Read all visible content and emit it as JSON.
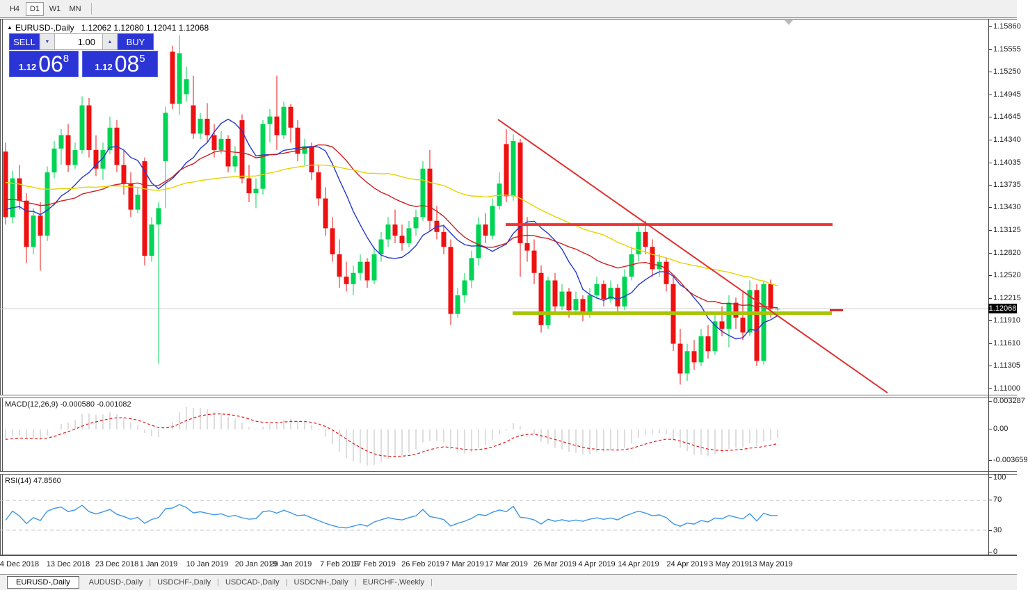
{
  "toolbar": {
    "timeframes": [
      {
        "label": "H4",
        "active": false
      },
      {
        "label": "D1",
        "active": true
      },
      {
        "label": "W1",
        "active": false
      },
      {
        "label": "MN",
        "active": false
      }
    ]
  },
  "chart": {
    "collapse_icon": "▲",
    "symbol": "EURUSD-,Daily",
    "quote": "1.12062 1.12080 1.12041 1.12068"
  },
  "trade_panel": {
    "sell_label": "SELL",
    "buy_label": "BUY",
    "volume": "1.00",
    "icons": {
      "up": "▲",
      "down": "▼"
    },
    "sell_price": {
      "small": "1.12",
      "big": "06",
      "sup": "8"
    },
    "buy_price": {
      "small": "1.12",
      "big": "08",
      "sup": "5"
    }
  },
  "macd_panel": {
    "name": "MACD(12,26,9)",
    "value": "-0.000580",
    "signal": "-0.001082"
  },
  "rsi_panel": {
    "name": "RSI(14)",
    "value": "47.8560"
  },
  "price_axis": {
    "current": "1.12068"
  },
  "bottom_tabs": [
    {
      "label": "EURUSD-,Daily",
      "active": true
    },
    {
      "label": "AUDUSD-,Daily",
      "active": false
    },
    {
      "label": "USDCHF-,Daily",
      "active": false
    },
    {
      "label": "USDCAD-,Daily",
      "active": false
    },
    {
      "label": "USDCNH-,Daily",
      "active": false
    },
    {
      "label": "EURCHF-,Weekly",
      "active": false
    }
  ],
  "chart_data": {
    "type": "candlestick",
    "symbol": "EURUSD-",
    "timeframe": "Daily",
    "ylim": [
      1.10915,
      1.15953
    ],
    "layout": {
      "first_x": 8,
      "spacing": 10,
      "body_width": 7
    },
    "colors": {
      "up": "#00d455",
      "down": "#ee1111",
      "current_price_line": "#c9c9c9",
      "macd_hist": "#bdbdbd",
      "macd_signal": "#e01818",
      "rsi_line": "#3e97e8",
      "levels_dash": "#c0c0c0",
      "panel_blue": "#2b35d5",
      "support_olive": "#a8c400",
      "resistance_red": "#f03434"
    },
    "indicators": {
      "moving_averages": [
        {
          "period": 10,
          "color": "#2238cc"
        },
        {
          "period": 25,
          "color": "#cc2020"
        },
        {
          "period": 50,
          "color": "#e8d200"
        }
      ],
      "macd": {
        "fast": 12,
        "slow": 26,
        "signal": 9
      },
      "rsi": {
        "period": 14,
        "levels": [
          70,
          30
        ]
      }
    },
    "overlays": {
      "hlines": [
        {
          "price": 1.132,
          "x1": 727,
          "x2": 1197,
          "color": "#f03434",
          "width": 4
        },
        {
          "price": 1.1201,
          "x1": 737,
          "x2": 1196,
          "color": "#a8c400",
          "width": 5
        }
      ],
      "trendline": {
        "x1": 716,
        "price1": 1.1461,
        "x2": 1276,
        "price2": 1.1094,
        "color": "#e03030",
        "width": 2
      },
      "price_marker": {
        "x1": 1193,
        "x2": 1212,
        "price": 1.1205,
        "color": "#e02020",
        "width": 3
      },
      "current_price": 1.12068
    },
    "y_ticks": [
      "1.15860",
      "1.15555",
      "1.15250",
      "1.14945",
      "1.14645",
      "1.14340",
      "1.14035",
      "1.13735",
      "1.13430",
      "1.13125",
      "1.12820",
      "1.12520",
      "1.12215",
      "1.11910",
      "1.11610",
      "1.11305",
      "1.11000"
    ],
    "macd_ticks": [
      "0.003287",
      "0.00",
      "-0.003659"
    ],
    "rsi_ticks": [
      "100",
      "70",
      "30",
      "0"
    ],
    "date_ticks": [
      {
        "label": "4 Dec 2018",
        "i": 2
      },
      {
        "label": "13 Dec 2018",
        "i": 9
      },
      {
        "label": "23 Dec 2018",
        "i": 16
      },
      {
        "label": "1 Jan 2019",
        "i": 22
      },
      {
        "label": "10 Jan 2019",
        "i": 29
      },
      {
        "label": "20 Jan 2019",
        "i": 36
      },
      {
        "label": "29 Jan 2019",
        "i": 41
      },
      {
        "label": "7 Feb 2019",
        "i": 48
      },
      {
        "label": "17 Feb 2019",
        "i": 53
      },
      {
        "label": "26 Feb 2019",
        "i": 60
      },
      {
        "label": "7 Mar 2019",
        "i": 66
      },
      {
        "label": "17 Mar 2019",
        "i": 72
      },
      {
        "label": "26 Mar 2019",
        "i": 79
      },
      {
        "label": "4 Apr 2019",
        "i": 85
      },
      {
        "label": "14 Apr 2019",
        "i": 91
      },
      {
        "label": "24 Apr 2019",
        "i": 98
      },
      {
        "label": "3 May 2019",
        "i": 104
      },
      {
        "label": "13 May 2019",
        "i": 110
      }
    ],
    "ohlc": [
      [
        1.1418,
        1.143,
        1.132,
        1.133
      ],
      [
        1.133,
        1.1392,
        1.1322,
        1.1382
      ],
      [
        1.1382,
        1.14,
        1.134,
        1.1352
      ],
      [
        1.1352,
        1.1362,
        1.1268,
        1.129
      ],
      [
        1.129,
        1.1342,
        1.128,
        1.1332
      ],
      [
        1.1332,
        1.135,
        1.1258,
        1.1305
      ],
      [
        1.1305,
        1.1398,
        1.1298,
        1.139
      ],
      [
        1.139,
        1.1432,
        1.1382,
        1.1422
      ],
      [
        1.1422,
        1.1448,
        1.14,
        1.144
      ],
      [
        1.144,
        1.1455,
        1.139,
        1.14
      ],
      [
        1.14,
        1.143,
        1.1395,
        1.142
      ],
      [
        1.142,
        1.1492,
        1.1415,
        1.148
      ],
      [
        1.148,
        1.149,
        1.141,
        1.142
      ],
      [
        1.142,
        1.144,
        1.1385,
        1.1395
      ],
      [
        1.1395,
        1.143,
        1.138,
        1.142
      ],
      [
        1.142,
        1.1465,
        1.1415,
        1.145
      ],
      [
        1.145,
        1.146,
        1.139,
        1.14
      ],
      [
        1.14,
        1.142,
        1.136,
        1.1375
      ],
      [
        1.1375,
        1.139,
        1.133,
        1.134
      ],
      [
        1.134,
        1.137,
        1.1335,
        1.136
      ],
      [
        1.1405,
        1.141,
        1.1265,
        1.1278
      ],
      [
        1.1278,
        1.133,
        1.127,
        1.132
      ],
      [
        1.132,
        1.135,
        1.1133,
        1.1342
      ],
      [
        1.1405,
        1.1478,
        1.1342,
        1.147
      ],
      [
        1.1552,
        1.156,
        1.1475,
        1.1482
      ],
      [
        1.1482,
        1.1574,
        1.1467,
        1.155
      ],
      [
        1.1495,
        1.1532,
        1.1485,
        1.1515
      ],
      [
        1.148,
        1.152,
        1.1435,
        1.1442
      ],
      [
        1.1442,
        1.147,
        1.1435,
        1.1462
      ],
      [
        1.1462,
        1.1483,
        1.143,
        1.144
      ],
      [
        1.144,
        1.1455,
        1.141,
        1.142
      ],
      [
        1.142,
        1.1445,
        1.1415,
        1.1435
      ],
      [
        1.1435,
        1.144,
        1.139,
        1.1398
      ],
      [
        1.1398,
        1.1425,
        1.139,
        1.1412
      ],
      [
        1.146,
        1.1468,
        1.1375,
        1.1382
      ],
      [
        1.1382,
        1.14,
        1.135,
        1.1362
      ],
      [
        1.1362,
        1.1382,
        1.1342,
        1.1368
      ],
      [
        1.1368,
        1.146,
        1.136,
        1.1455
      ],
      [
        1.1455,
        1.1475,
        1.143,
        1.1465
      ],
      [
        1.1465,
        1.152,
        1.142,
        1.144
      ],
      [
        1.144,
        1.1485,
        1.1435,
        1.1478
      ],
      [
        1.1478,
        1.1482,
        1.143,
        1.145
      ],
      [
        1.145,
        1.146,
        1.1405,
        1.1415
      ],
      [
        1.1415,
        1.1435,
        1.14,
        1.1425
      ],
      [
        1.1425,
        1.143,
        1.138,
        1.139
      ],
      [
        1.139,
        1.14,
        1.1345,
        1.1355
      ],
      [
        1.1355,
        1.137,
        1.1305,
        1.1315
      ],
      [
        1.1315,
        1.133,
        1.127,
        1.128
      ],
      [
        1.128,
        1.13,
        1.1235,
        1.125
      ],
      [
        1.125,
        1.127,
        1.123,
        1.124
      ],
      [
        1.124,
        1.1265,
        1.1225,
        1.1255
      ],
      [
        1.1255,
        1.128,
        1.1245,
        1.127
      ],
      [
        1.127,
        1.1275,
        1.1235,
        1.1245
      ],
      [
        1.1245,
        1.129,
        1.124,
        1.128
      ],
      [
        1.128,
        1.131,
        1.127,
        1.13
      ],
      [
        1.13,
        1.133,
        1.129,
        1.132
      ],
      [
        1.132,
        1.134,
        1.1295,
        1.1305
      ],
      [
        1.1305,
        1.132,
        1.1285,
        1.1295
      ],
      [
        1.1295,
        1.1325,
        1.129,
        1.1315
      ],
      [
        1.1315,
        1.134,
        1.1305,
        1.133
      ],
      [
        1.133,
        1.1405,
        1.1325,
        1.1395
      ],
      [
        1.1395,
        1.142,
        1.131,
        1.1325
      ],
      [
        1.1325,
        1.1345,
        1.13,
        1.131
      ],
      [
        1.131,
        1.132,
        1.128,
        1.129
      ],
      [
        1.129,
        1.13,
        1.1185,
        1.12
      ],
      [
        1.12,
        1.1235,
        1.1195,
        1.1225
      ],
      [
        1.1225,
        1.1255,
        1.1215,
        1.1245
      ],
      [
        1.1245,
        1.1285,
        1.1235,
        1.1275
      ],
      [
        1.1275,
        1.133,
        1.1265,
        1.132
      ],
      [
        1.132,
        1.1335,
        1.1295,
        1.1305
      ],
      [
        1.1305,
        1.1355,
        1.13,
        1.1345
      ],
      [
        1.1345,
        1.139,
        1.134,
        1.1375
      ],
      [
        1.1428,
        1.1448,
        1.135,
        1.1358
      ],
      [
        1.1358,
        1.1441,
        1.1352,
        1.1432
      ],
      [
        1.143,
        1.1435,
        1.125,
        1.1295
      ],
      [
        1.1295,
        1.133,
        1.127,
        1.1285
      ],
      [
        1.1285,
        1.13,
        1.124,
        1.1255
      ],
      [
        1.1255,
        1.1265,
        1.1175,
        1.1185
      ],
      [
        1.1185,
        1.125,
        1.118,
        1.1245
      ],
      [
        1.1245,
        1.1255,
        1.12,
        1.121
      ],
      [
        1.121,
        1.124,
        1.1205,
        1.123
      ],
      [
        1.123,
        1.1235,
        1.1195,
        1.1205
      ],
      [
        1.1205,
        1.123,
        1.12,
        1.122
      ],
      [
        1.122,
        1.1225,
        1.119,
        1.12
      ],
      [
        1.12,
        1.1235,
        1.1195,
        1.1225
      ],
      [
        1.1225,
        1.125,
        1.122,
        1.124
      ],
      [
        1.124,
        1.1245,
        1.121,
        1.122
      ],
      [
        1.122,
        1.1245,
        1.1215,
        1.1235
      ],
      [
        1.1235,
        1.124,
        1.12,
        1.121
      ],
      [
        1.121,
        1.126,
        1.1205,
        1.125
      ],
      [
        1.125,
        1.129,
        1.1245,
        1.128
      ],
      [
        1.128,
        1.132,
        1.127,
        1.131
      ],
      [
        1.131,
        1.1325,
        1.128,
        1.129
      ],
      [
        1.129,
        1.13,
        1.125,
        1.126
      ],
      [
        1.126,
        1.128,
        1.125,
        1.127
      ],
      [
        1.127,
        1.1275,
        1.123,
        1.124
      ],
      [
        1.124,
        1.125,
        1.115,
        1.116
      ],
      [
        1.116,
        1.118,
        1.1105,
        1.112
      ],
      [
        1.112,
        1.116,
        1.111,
        1.115
      ],
      [
        1.115,
        1.1165,
        1.1125,
        1.1135
      ],
      [
        1.1135,
        1.118,
        1.113,
        1.117
      ],
      [
        1.117,
        1.1185,
        1.114,
        1.115
      ],
      [
        1.115,
        1.12,
        1.1145,
        1.119
      ],
      [
        1.119,
        1.121,
        1.117,
        1.118
      ],
      [
        1.118,
        1.1225,
        1.1155,
        1.1215
      ],
      [
        1.1215,
        1.1222,
        1.118,
        1.1195
      ],
      [
        1.1195,
        1.123,
        1.1165,
        1.1175
      ],
      [
        1.1175,
        1.1245,
        1.117,
        1.1232
      ],
      [
        1.1232,
        1.124,
        1.113,
        1.1137
      ],
      [
        1.1137,
        1.1245,
        1.1132,
        1.124
      ],
      [
        1.124,
        1.1246,
        1.1195,
        1.1207
      ],
      [
        1.12062,
        1.1208,
        1.12041,
        1.12068
      ]
    ]
  }
}
